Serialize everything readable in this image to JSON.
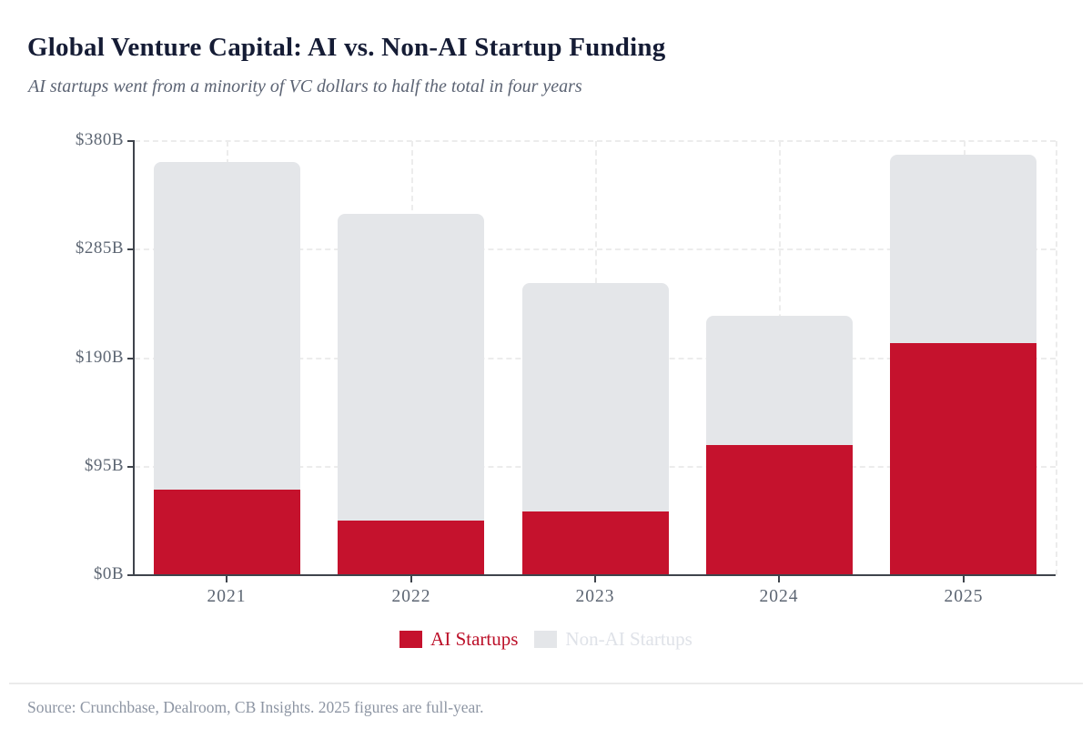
{
  "header": {
    "title": "Global Venture Capital: AI vs. Non-AI Startup Funding",
    "subtitle": "AI startups went from a minority of VC dollars to half the total in four years"
  },
  "footer": {
    "source": "Source: Crunchbase, Dealroom, CB Insights. 2025 figures are full-year."
  },
  "legend": {
    "items": [
      {
        "label": "AI Startups",
        "color": "#c5122d",
        "text_color": "#bc1029"
      },
      {
        "label": "Non-AI Startups",
        "color": "#e4e6e9",
        "text_color": "#dfe2e8"
      }
    ]
  },
  "colors": {
    "ai_red": "#c5122d",
    "non_ai_gray": "#e4e6e9",
    "title_navy": "#151c35",
    "subtitle_gray": "#5c6474",
    "axis_text": "#5d6673",
    "axis_line": "#3f444c",
    "gridline": "#ececec",
    "source_gray": "#8d95a3"
  },
  "chart_data": {
    "type": "bar",
    "stacked": true,
    "title": "Global Venture Capital: AI vs. Non-AI Startup Funding",
    "subtitle": "AI startups went from a minority of VC dollars to half the total in four years",
    "categories": [
      "2021",
      "2022",
      "2023",
      "2024",
      "2025"
    ],
    "series": [
      {
        "name": "AI Startups",
        "color": "#c5122d",
        "values": [
          75,
          48,
          56,
          114,
          203
        ]
      },
      {
        "name": "Non-AI Startups",
        "color": "#e4e6e9",
        "values": [
          287,
          268,
          200,
          113,
          165
        ]
      }
    ],
    "totals": [
      362,
      316,
      256,
      227,
      368
    ],
    "units": "billions USD",
    "xlabel": "",
    "ylabel": "",
    "ylim": [
      0,
      380
    ],
    "yticks": [
      0,
      95,
      190,
      285,
      380
    ],
    "ytick_labels": [
      "$0B",
      "$95B",
      "$190B",
      "$285B",
      "$380B"
    ],
    "grid": "dashed",
    "legend_position": "bottom"
  }
}
